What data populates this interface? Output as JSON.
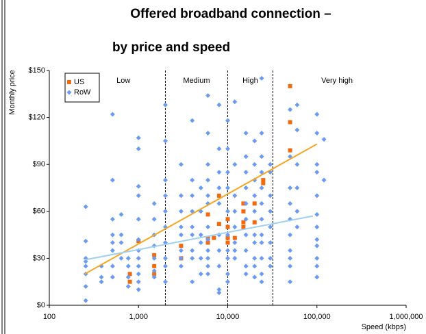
{
  "chart_data": {
    "type": "scatter",
    "title": "Offered broadband connection –",
    "subtitle": "by price and speed",
    "xlabel": "Speed (kbps)",
    "ylabel": "Monthly price",
    "xscale": "log",
    "xlim": [
      100,
      1000000
    ],
    "ylim": [
      0,
      150
    ],
    "xticks": [
      100,
      {
        "value": 1000,
        "label": "1,000"
      },
      {
        "value": 10000,
        "label": "10,000"
      },
      {
        "value": 100000,
        "label": "100,000"
      },
      {
        "value": 1000000,
        "label": "1,000,000"
      }
    ],
    "yticks": [
      {
        "value": 0,
        "label": "$0"
      },
      {
        "value": 30,
        "label": "$30"
      },
      {
        "value": 60,
        "label": "$60"
      },
      {
        "value": 90,
        "label": "$90"
      },
      {
        "value": 120,
        "label": "$120"
      },
      {
        "value": 150,
        "label": "$150"
      }
    ],
    "legend": "top-left",
    "dividers": [
      2000,
      10000,
      32000
    ],
    "regions": [
      "Low",
      "Medium",
      "High",
      "Very high"
    ],
    "series": [
      {
        "name": "US",
        "color": "#f26a10",
        "marker": "square",
        "x": [
          800,
          800,
          1000,
          1500,
          1500,
          1500,
          3000,
          3000,
          6000,
          6000,
          6000,
          7000,
          8000,
          8000,
          10000,
          10000,
          10000,
          10000,
          12000,
          15000,
          15000,
          15000,
          15000,
          20000,
          20000,
          25000,
          25000,
          50000,
          50000,
          50000
        ],
        "values": [
          20,
          15,
          41,
          32,
          25,
          20,
          38,
          30,
          58,
          43,
          40,
          43,
          70,
          52,
          55,
          50,
          43,
          40,
          43,
          65,
          60,
          53,
          50,
          65,
          53,
          80,
          78,
          140,
          117,
          99
        ]
      },
      {
        "name": "RoW",
        "color": "#6b9bf0",
        "marker": "diamond",
        "x": [
          256,
          256,
          256,
          256,
          256,
          256,
          256,
          256,
          384,
          384,
          384,
          512,
          512,
          512,
          512,
          512,
          512,
          512,
          512,
          640,
          640,
          640,
          640,
          768,
          768,
          768,
          768,
          1000,
          1000,
          1000,
          1000,
          1000,
          1000,
          1000,
          1000,
          1000,
          1000,
          1000,
          1000,
          1500,
          1500,
          1500,
          1500,
          1500,
          1500,
          1500,
          2000,
          2000,
          2000,
          2000,
          2000,
          2000,
          2000,
          2000,
          2000,
          2000,
          3000,
          3000,
          3000,
          3000,
          3000,
          3000,
          3000,
          3000,
          4000,
          4000,
          4000,
          4000,
          4000,
          4000,
          4000,
          4000,
          4000,
          5000,
          5000,
          5000,
          5000,
          5000,
          5000,
          6000,
          6000,
          6000,
          6000,
          6000,
          6000,
          6000,
          6000,
          6000,
          6000,
          6000,
          6000,
          8000,
          8000,
          8000,
          8000,
          8000,
          8000,
          8000,
          8000,
          8000,
          8000,
          10000,
          10000,
          10000,
          10000,
          10000,
          10000,
          10000,
          10000,
          10000,
          10000,
          12000,
          12000,
          12000,
          12000,
          12000,
          12000,
          12000,
          12000,
          16000,
          16000,
          16000,
          16000,
          16000,
          16000,
          16000,
          16000,
          16000,
          16000,
          20000,
          20000,
          20000,
          20000,
          20000,
          20000,
          20000,
          20000,
          20000,
          20000,
          24000,
          24000,
          24000,
          24000,
          24000,
          24000,
          24000,
          24000,
          24000,
          24000,
          24000,
          24000,
          30000,
          30000,
          30000,
          30000,
          30000,
          30000,
          30000,
          30000,
          50000,
          50000,
          50000,
          50000,
          50000,
          50000,
          50000,
          50000,
          50000,
          50000,
          60000,
          60000,
          60000,
          60000,
          60000,
          60000,
          100000,
          100000,
          100000,
          100000,
          100000,
          100000,
          100000,
          100000,
          100000,
          100000,
          100000,
          100000,
          120000,
          120000
        ],
        "values": [
          63,
          41,
          30,
          28,
          25,
          20,
          12,
          3,
          25,
          18,
          15,
          122,
          80,
          55,
          45,
          40,
          35,
          25,
          18,
          58,
          45,
          40,
          30,
          30,
          25,
          18,
          12,
          107,
          100,
          76,
          70,
          55,
          42,
          35,
          30,
          25,
          20,
          15,
          10,
          65,
          55,
          45,
          38,
          30,
          22,
          18,
          128,
          105,
          80,
          70,
          60,
          50,
          40,
          30,
          25,
          15,
          90,
          70,
          60,
          50,
          45,
          35,
          30,
          25,
          118,
          80,
          70,
          60,
          50,
          45,
          35,
          30,
          15,
          75,
          60,
          45,
          40,
          30,
          20,
          134,
          110,
          90,
          80,
          70,
          65,
          50,
          42,
          35,
          30,
          25,
          20,
          128,
          100,
          85,
          75,
          65,
          45,
          35,
          25,
          10,
          8,
          118,
          100,
          85,
          75,
          60,
          45,
          35,
          30,
          20,
          15,
          130,
          90,
          70,
          60,
          50,
          40,
          35,
          30,
          110,
          95,
          85,
          75,
          65,
          55,
          45,
          35,
          25,
          20,
          105,
          90,
          80,
          70,
          60,
          45,
          40,
          30,
          25,
          18,
          145,
          110,
          95,
          85,
          75,
          65,
          55,
          45,
          40,
          30,
          20,
          15,
          90,
          85,
          70,
          60,
          50,
          40,
          30,
          25,
          125,
          95,
          75,
          65,
          55,
          45,
          35,
          30,
          25,
          15,
          128,
          112,
          90,
          75,
          60,
          50,
          122,
          110,
          90,
          85,
          70,
          58,
          50,
          42,
          38,
          30,
          25,
          18,
          106,
          80
        ]
      }
    ],
    "trendlines": [
      {
        "color": "#f5a623",
        "x": [
          250,
          100000
        ],
        "values": [
          20,
          103
        ]
      },
      {
        "color": "#9fd0f0",
        "x": [
          250,
          90000
        ],
        "values": [
          29,
          57
        ]
      }
    ]
  }
}
